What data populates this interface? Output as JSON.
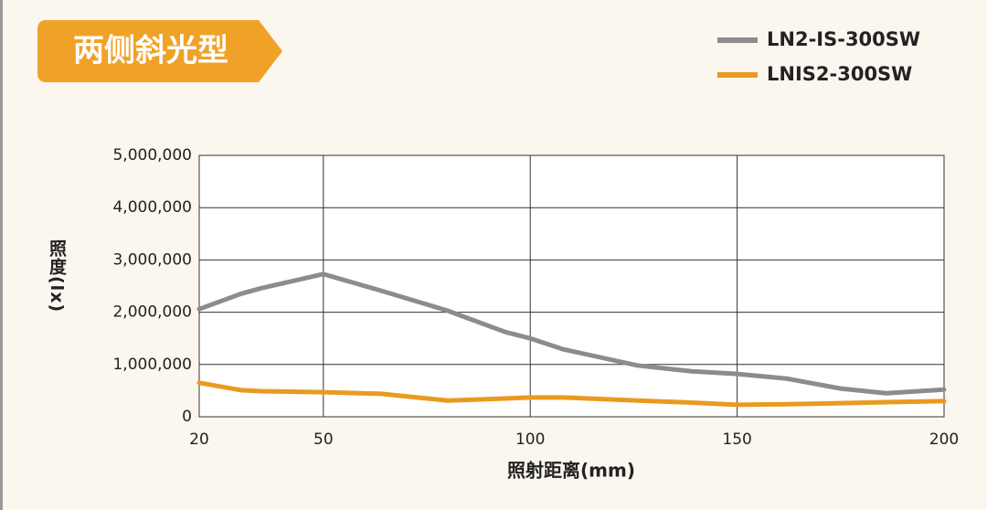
{
  "chart_data": {
    "type": "line",
    "title": "两侧斜光型",
    "x_label": "照射距离(mm)",
    "y_label": "照度(lx)",
    "x": [
      20,
      30,
      35,
      50,
      64,
      80,
      94,
      100,
      108,
      126,
      139,
      150,
      162,
      175,
      186,
      200
    ],
    "series": [
      {
        "name": "LN2-IS-300SW",
        "color": "#8c8c8c",
        "values": [
          2060000,
          2350000,
          2460000,
          2730000,
          2410000,
          2030000,
          1620000,
          1500000,
          1290000,
          980000,
          870000,
          820000,
          730000,
          540000,
          450000,
          520000
        ]
      },
      {
        "name": "LNIS2-300SW",
        "color": "#e99a1e",
        "values": [
          650000,
          510000,
          490000,
          470000,
          440000,
          310000,
          350000,
          370000,
          370000,
          310000,
          270000,
          230000,
          240000,
          260000,
          280000,
          300000
        ]
      }
    ],
    "xlim": [
      20,
      200
    ],
    "xticks": [
      20,
      50,
      100,
      150,
      200
    ],
    "ylim": [
      0,
      5000000
    ],
    "yticks": [
      0,
      {
        "value": 1000000,
        "label": "1,000,000"
      },
      {
        "value": 2000000,
        "label": "2,000,000"
      },
      {
        "value": 3000000,
        "label": "3,000,000"
      },
      {
        "value": 4000000,
        "label": "4,000,000"
      },
      {
        "value": 5000000,
        "label": "5,000,000"
      }
    ],
    "grid": true,
    "legend": "top-right",
    "title_color": "#f0a228"
  }
}
